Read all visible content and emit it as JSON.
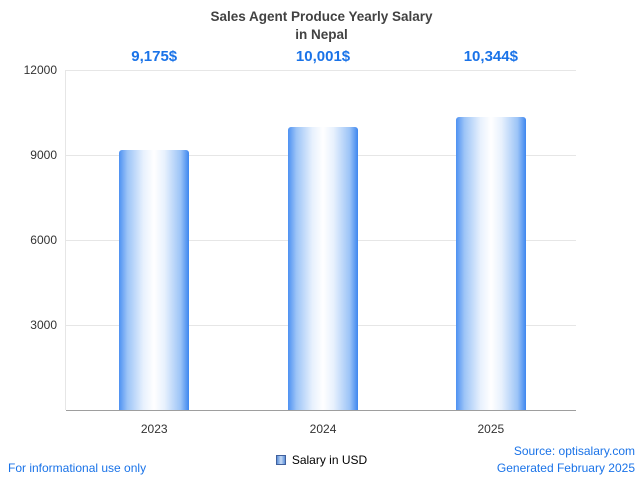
{
  "title": {
    "line1": "Sales Agent Produce Yearly Salary",
    "line2": "in Nepal"
  },
  "chart_data": {
    "type": "bar",
    "title": "Sales Agent Produce Yearly Salary in Nepal",
    "categories": [
      "2023",
      "2024",
      "2025"
    ],
    "values": [
      9175,
      10001,
      10344
    ],
    "value_labels": [
      "9,175$",
      "10,001$",
      "10,344$"
    ],
    "series_name": "Salary in USD",
    "xlabel": "",
    "ylabel": "",
    "ylim": [
      0,
      12000
    ],
    "yticks": [
      12000,
      9000,
      6000,
      3000
    ],
    "ytick_labels": [
      "12000",
      "9000",
      "6000",
      "3000"
    ],
    "grid": true,
    "legend_position": "bottom",
    "colors": {
      "bar_edge": "#4d91f2",
      "bar_center": "#ffffff",
      "value_label": "#1a73e8",
      "gridline": "#e6e6e6",
      "axis": "#9e9e9e"
    }
  },
  "legend": {
    "label": "Salary in USD"
  },
  "footer": {
    "left": "For informational use only",
    "source": "Source: optisalary.com",
    "generated": "Generated February 2025"
  }
}
